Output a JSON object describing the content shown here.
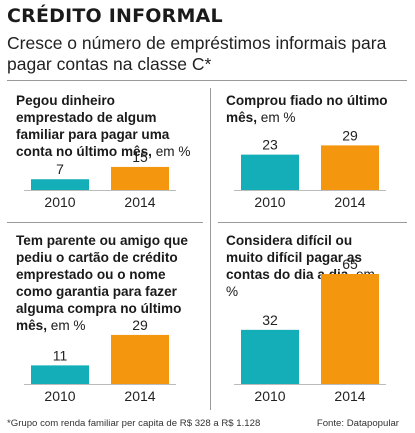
{
  "header": {
    "title": "CRÉDITO INFORMAL",
    "subtitle": "Cresce o número de empréstimos informais para pagar contas na classe C*"
  },
  "colors": {
    "bar_2010": "#13aeb8",
    "bar_2014": "#f5960f",
    "text": "#222222",
    "rule": "#9a9a9a"
  },
  "chart_data": [
    {
      "type": "bar",
      "title_bold": "Pegou dinheiro emprestado de algum familiar para pagar uma conta no último mês,",
      "title_unit": "em %",
      "categories": [
        "2010",
        "2014"
      ],
      "values": [
        7,
        15
      ],
      "ylim": [
        0,
        65
      ]
    },
    {
      "type": "bar",
      "title_bold": "Comprou fiado no último mês,",
      "title_unit": "em %",
      "categories": [
        "2010",
        "2014"
      ],
      "values": [
        23,
        29
      ],
      "ylim": [
        0,
        65
      ]
    },
    {
      "type": "bar",
      "title_bold": "Tem parente ou amigo que pediu o cartão de crédito emprestado ou o nome como garantia para fazer alguma compra no último mês,",
      "title_unit": "em %",
      "categories": [
        "2010",
        "2014"
      ],
      "values": [
        11,
        29
      ],
      "ylim": [
        0,
        65
      ]
    },
    {
      "type": "bar",
      "title_bold": "Considera difícil ou muito difícil pagar as contas do dia a dia,",
      "title_unit": "em %",
      "categories": [
        "2010",
        "2014"
      ],
      "values": [
        32,
        65
      ],
      "ylim": [
        0,
        65
      ]
    }
  ],
  "footer": {
    "note": "*Grupo com renda familiar per capita de R$ 328 a R$ 1.128",
    "source": "Fonte: Datapopular"
  }
}
